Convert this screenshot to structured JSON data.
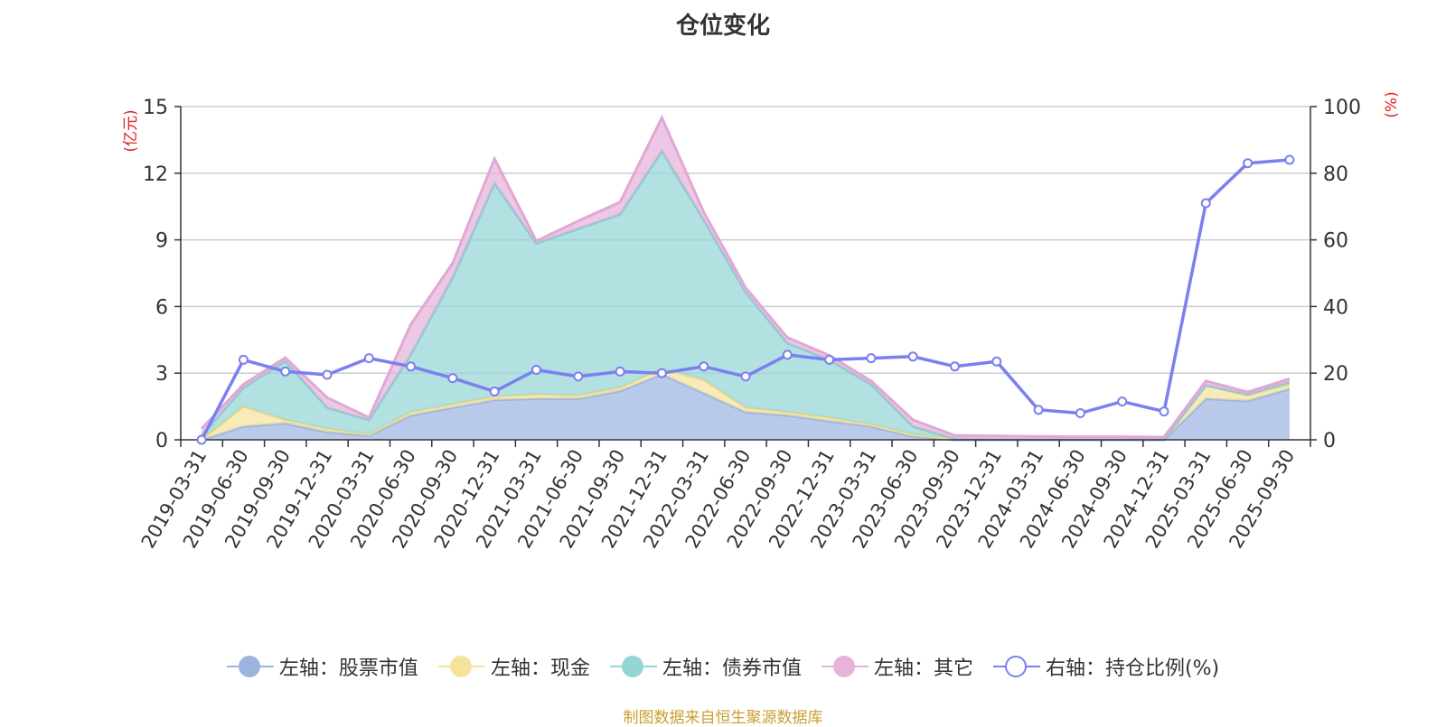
{
  "title": "仓位变化",
  "source": "制图数据来自恒生聚源数据库",
  "left_axis_unit": "(亿元)",
  "right_axis_unit": "(%)",
  "legend": [
    {
      "label": "左轴：股票市值",
      "color": "#9db4e0",
      "style": "fill"
    },
    {
      "label": "左轴：现金",
      "color": "#f5e39c",
      "style": "fill"
    },
    {
      "label": "左轴：债券市值",
      "color": "#95d5d5",
      "style": "fill"
    },
    {
      "label": "左轴：其它",
      "color": "#e6b3db",
      "style": "fill"
    },
    {
      "label": "右轴：持仓比例(%)",
      "color": "#7b7ff0",
      "style": "hollow"
    }
  ],
  "chart_data": {
    "type": "area",
    "stacked": true,
    "categories": [
      "2019-03-31",
      "2019-06-30",
      "2019-09-30",
      "2019-12-31",
      "2020-03-31",
      "2020-06-30",
      "2020-09-30",
      "2020-12-31",
      "2021-03-31",
      "2021-06-30",
      "2021-09-30",
      "2021-12-31",
      "2022-03-31",
      "2022-06-30",
      "2022-09-30",
      "2022-12-31",
      "2023-03-31",
      "2023-06-30",
      "2023-09-30",
      "2023-12-31",
      "2024-03-31",
      "2024-06-30",
      "2024-09-30",
      "2024-12-31",
      "2025-03-31",
      "2025-06-30",
      "2025-09-30"
    ],
    "left_axis": {
      "ylim": [
        0,
        15
      ],
      "ticks": [
        0,
        3,
        6,
        9,
        12,
        15
      ],
      "label": "(亿元)"
    },
    "right_axis": {
      "ylim": [
        0,
        100
      ],
      "ticks": [
        0,
        20,
        40,
        60,
        80,
        100
      ],
      "label": "(%)"
    },
    "series": [
      {
        "name": "左轴：股票市值",
        "axis": "left",
        "color": "#9db4e0",
        "line_color": "#9db4e0",
        "values": [
          0.0,
          0.6,
          0.75,
          0.35,
          0.2,
          1.1,
          1.45,
          1.8,
          1.85,
          1.85,
          2.2,
          2.95,
          2.1,
          1.25,
          1.1,
          0.85,
          0.6,
          0.15,
          0.0,
          0.0,
          0.0,
          0.0,
          0.0,
          0.0,
          1.85,
          1.75,
          2.3
        ]
      },
      {
        "name": "左轴：现金",
        "axis": "left",
        "color": "#f5e39c",
        "line_color": "#f0dc8c",
        "values": [
          0.0,
          0.9,
          0.15,
          0.15,
          0.05,
          0.15,
          0.15,
          0.15,
          0.2,
          0.15,
          0.15,
          0.25,
          0.6,
          0.2,
          0.15,
          0.15,
          0.1,
          0.1,
          0.05,
          0.02,
          0.02,
          0.02,
          0.02,
          0.02,
          0.6,
          0.25,
          0.2
        ]
      },
      {
        "name": "左轴：债券市值",
        "axis": "left",
        "color": "#95d5d5",
        "line_color": "#86cccc",
        "values": [
          0.2,
          0.85,
          2.65,
          0.95,
          0.65,
          2.6,
          5.7,
          9.6,
          6.8,
          7.5,
          7.8,
          9.8,
          7.2,
          5.2,
          3.1,
          2.6,
          1.8,
          0.35,
          0.0,
          0.0,
          0.0,
          0.0,
          0.0,
          0.0,
          0.0,
          0.05,
          0.1
        ]
      },
      {
        "name": "左轴：其它",
        "axis": "left",
        "color": "#e6b3db",
        "line_color": "#e0a8d6",
        "values": [
          0.3,
          0.15,
          0.15,
          0.45,
          0.1,
          1.35,
          0.65,
          1.1,
          0.1,
          0.35,
          0.55,
          1.5,
          0.35,
          0.2,
          0.25,
          0.2,
          0.15,
          0.3,
          0.15,
          0.15,
          0.13,
          0.12,
          0.12,
          0.1,
          0.2,
          0.1,
          0.15
        ]
      },
      {
        "name": "右轴：持仓比例(%)",
        "axis": "right",
        "type": "line",
        "color": "#7b7ff0",
        "values": [
          0,
          24,
          20.5,
          19.5,
          24.5,
          22,
          18.5,
          14.5,
          21,
          19,
          20.5,
          20,
          22,
          19,
          25.5,
          24,
          24.5,
          25,
          22,
          23.5,
          9,
          8,
          11.5,
          8.5,
          71,
          83,
          84
        ]
      }
    ]
  }
}
